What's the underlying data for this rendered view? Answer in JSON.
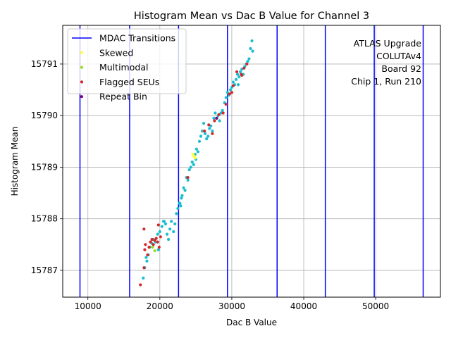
{
  "chart_data": {
    "type": "scatter",
    "title": "Histogram Mean vs Dac B Value for Channel 3",
    "xlabel": "Dac B Value",
    "ylabel": "Histogram Mean",
    "xlim": [
      6500,
      59000
    ],
    "ylim": [
      15786.48,
      15791.75
    ],
    "xticks": [
      10000,
      20000,
      30000,
      40000,
      50000
    ],
    "yticks": [
      15787,
      15788,
      15789,
      15790,
      15791
    ],
    "grid": true,
    "legend_position": "top-left",
    "annotation": [
      "ATLAS Upgrade",
      "COLUTAv4",
      "Board 92",
      "Chip 1, Run 210"
    ],
    "mdac_transitions": [
      8900,
      15800,
      22600,
      29400,
      36300,
      43000,
      49800,
      56600
    ],
    "colors": {
      "data": "#17becf",
      "mdac": "#0000ff",
      "skewed": "#ffff33",
      "multimodal": "#99dd22",
      "flagged": "#d62728",
      "repeat": "#800080",
      "grid": "#b0b0b0"
    },
    "legend": [
      {
        "label": "MDAC Transitions",
        "kind": "line",
        "color": "#0000ff"
      },
      {
        "label": "Skewed",
        "kind": "dot",
        "color": "#ffff33"
      },
      {
        "label": "Multimodal",
        "kind": "dot",
        "color": "#99dd22"
      },
      {
        "label": "Flagged SEUs",
        "kind": "dot",
        "color": "#d62728"
      },
      {
        "label": "Repeat Bin",
        "kind": "dot",
        "color": "#800080"
      }
    ],
    "series": [
      {
        "name": "Data",
        "points": [
          [
            17700,
            15786.85
          ],
          [
            17900,
            15787.05
          ],
          [
            18200,
            15787.18
          ],
          [
            18400,
            15787.3
          ],
          [
            18600,
            15787.45
          ],
          [
            18900,
            15787.52
          ],
          [
            19100,
            15787.6
          ],
          [
            19400,
            15787.55
          ],
          [
            19700,
            15787.7
          ],
          [
            20000,
            15787.75
          ],
          [
            20300,
            15787.85
          ],
          [
            20500,
            15787.95
          ],
          [
            20800,
            15787.9
          ],
          [
            21000,
            15787.7
          ],
          [
            21200,
            15787.6
          ],
          [
            21400,
            15787.8
          ],
          [
            21600,
            15787.95
          ],
          [
            21900,
            15787.75
          ],
          [
            22100,
            15787.9
          ],
          [
            22300,
            15788.1
          ],
          [
            22500,
            15788.2
          ],
          [
            22700,
            15788.3
          ],
          [
            22900,
            15788.25
          ],
          [
            23100,
            15788.45
          ],
          [
            23300,
            15788.6
          ],
          [
            23500,
            15788.55
          ],
          [
            23700,
            15788.8
          ],
          [
            23900,
            15788.75
          ],
          [
            24100,
            15788.95
          ],
          [
            24300,
            15789.0
          ],
          [
            24500,
            15789.1
          ],
          [
            24700,
            15789.05
          ],
          [
            24900,
            15789.25
          ],
          [
            25100,
            15789.35
          ],
          [
            25300,
            15789.3
          ],
          [
            25500,
            15789.5
          ],
          [
            25700,
            15789.6
          ],
          [
            25900,
            15789.7
          ],
          [
            26100,
            15789.85
          ],
          [
            26300,
            15789.65
          ],
          [
            26500,
            15789.55
          ],
          [
            26700,
            15789.6
          ],
          [
            26900,
            15789.75
          ],
          [
            27100,
            15789.8
          ],
          [
            27300,
            15789.7
          ],
          [
            27500,
            15789.95
          ],
          [
            27700,
            15790.05
          ],
          [
            27900,
            15789.95
          ],
          [
            28100,
            15790.0
          ],
          [
            28300,
            15789.9
          ],
          [
            28500,
            15790.05
          ],
          [
            28700,
            15790.1
          ],
          [
            29000,
            15790.25
          ],
          [
            29200,
            15790.35
          ],
          [
            29400,
            15790.45
          ],
          [
            29600,
            15790.4
          ],
          [
            29800,
            15790.5
          ],
          [
            30000,
            15790.55
          ],
          [
            30200,
            15790.65
          ],
          [
            30400,
            15790.6
          ],
          [
            30600,
            15790.7
          ],
          [
            30800,
            15790.8
          ],
          [
            31000,
            15790.75
          ],
          [
            31200,
            15790.85
          ],
          [
            31400,
            15790.9
          ],
          [
            31600,
            15790.8
          ],
          [
            31800,
            15790.95
          ],
          [
            32000,
            15791.0
          ],
          [
            32200,
            15791.05
          ],
          [
            32400,
            15791.1
          ],
          [
            32600,
            15791.3
          ],
          [
            32800,
            15791.45
          ],
          [
            32900,
            15791.25
          ],
          [
            23000,
            15788.4
          ],
          [
            22800,
            15788.3
          ],
          [
            20600,
            15787.95
          ],
          [
            19800,
            15787.4
          ],
          [
            18100,
            15787.25
          ],
          [
            25000,
            15789.15
          ],
          [
            30900,
            15790.6
          ]
        ]
      },
      {
        "name": "Skewed",
        "points": [
          [
            24700,
            15789.22
          ],
          [
            24900,
            15789.18
          ],
          [
            24600,
            15789.25
          ]
        ]
      },
      {
        "name": "Multimodal",
        "points": [
          [
            19000,
            15787.45
          ],
          [
            19300,
            15787.38
          ]
        ]
      },
      {
        "name": "Flagged SEUs",
        "points": [
          [
            17300,
            15786.72
          ],
          [
            17800,
            15787.05
          ],
          [
            17900,
            15787.4
          ],
          [
            18000,
            15787.5
          ],
          [
            18300,
            15787.3
          ],
          [
            18500,
            15787.45
          ],
          [
            18700,
            15787.55
          ],
          [
            18900,
            15787.6
          ],
          [
            19100,
            15787.5
          ],
          [
            19300,
            15787.58
          ],
          [
            19500,
            15787.62
          ],
          [
            19700,
            15787.55
          ],
          [
            19900,
            15787.45
          ],
          [
            20100,
            15787.65
          ],
          [
            19800,
            15787.88
          ],
          [
            17800,
            15787.8
          ],
          [
            23900,
            15788.8
          ],
          [
            26200,
            15789.7
          ],
          [
            26800,
            15789.82
          ],
          [
            27300,
            15789.65
          ],
          [
            27600,
            15789.9
          ],
          [
            28200,
            15790.02
          ],
          [
            28800,
            15790.05
          ],
          [
            29200,
            15790.22
          ],
          [
            29700,
            15790.42
          ],
          [
            30200,
            15790.58
          ],
          [
            30700,
            15790.85
          ],
          [
            31300,
            15790.8
          ],
          [
            31700,
            15790.92
          ],
          [
            32100,
            15791.0
          ],
          [
            31400,
            15790.78
          ],
          [
            30000,
            15790.45
          ]
        ]
      },
      {
        "name": "Repeat Bin",
        "points": [
          [
            27900,
            15789.95
          ]
        ]
      }
    ]
  }
}
